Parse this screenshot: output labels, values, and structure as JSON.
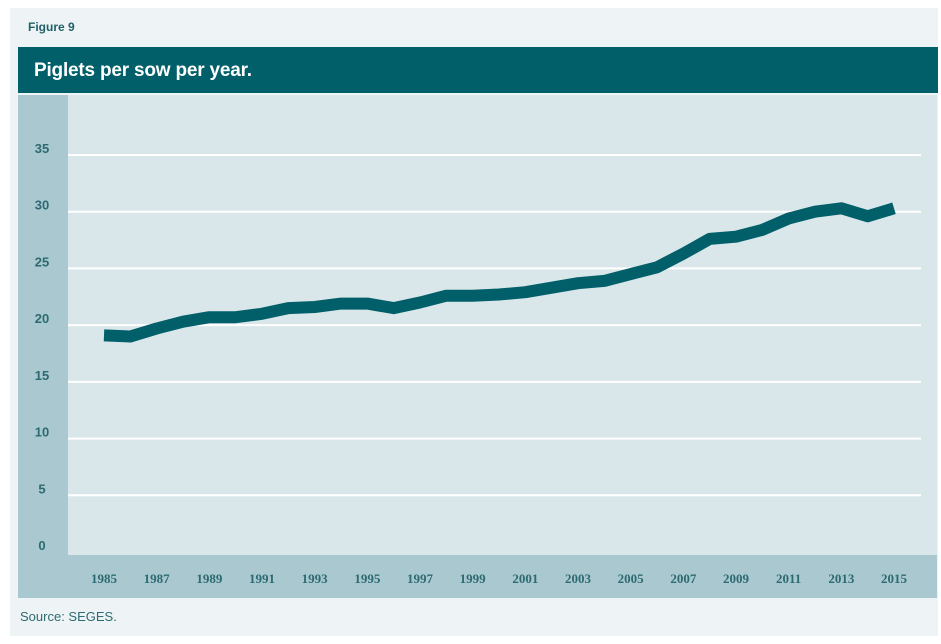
{
  "figure_label": "Figure 9",
  "source": "Source: SEGES.",
  "colors": {
    "title_bar": "#005f69",
    "line": "#005f69",
    "plot_bg": "#d9e7ea",
    "axis_band": "#a9c8cf",
    "grid": "#ffffff"
  },
  "chart_data": {
    "type": "line",
    "title": "Piglets per sow per year.",
    "xlabel": "",
    "ylabel": "",
    "ylim": [
      0,
      35
    ],
    "yticks": [
      0,
      5,
      10,
      15,
      20,
      25,
      30,
      35
    ],
    "xlim": [
      1985,
      2015
    ],
    "xticks": [
      1985,
      1987,
      1989,
      1991,
      1993,
      1995,
      1997,
      1999,
      2001,
      2003,
      2005,
      2007,
      2009,
      2011,
      2013,
      2015
    ],
    "grid": true,
    "legend": "none",
    "series": [
      {
        "x": [
          1985,
          1986,
          1987,
          1988,
          1989,
          1990,
          1991,
          1992,
          1993,
          1994,
          1995,
          1996,
          1997,
          1998,
          1999,
          2000,
          2001,
          2002,
          2003,
          2004,
          2005,
          2006,
          2007,
          2008,
          2009,
          2010,
          2011,
          2012,
          2013,
          2014,
          2015
        ],
        "values": [
          19.1,
          19.0,
          19.7,
          20.3,
          20.7,
          20.7,
          21.0,
          21.5,
          21.6,
          21.9,
          21.9,
          21.5,
          22.0,
          22.6,
          22.6,
          22.7,
          22.9,
          23.3,
          23.7,
          23.9,
          24.5,
          25.1,
          26.3,
          27.6,
          27.8,
          28.4,
          29.4,
          30.0,
          30.3,
          29.6,
          30.3
        ]
      }
    ]
  }
}
